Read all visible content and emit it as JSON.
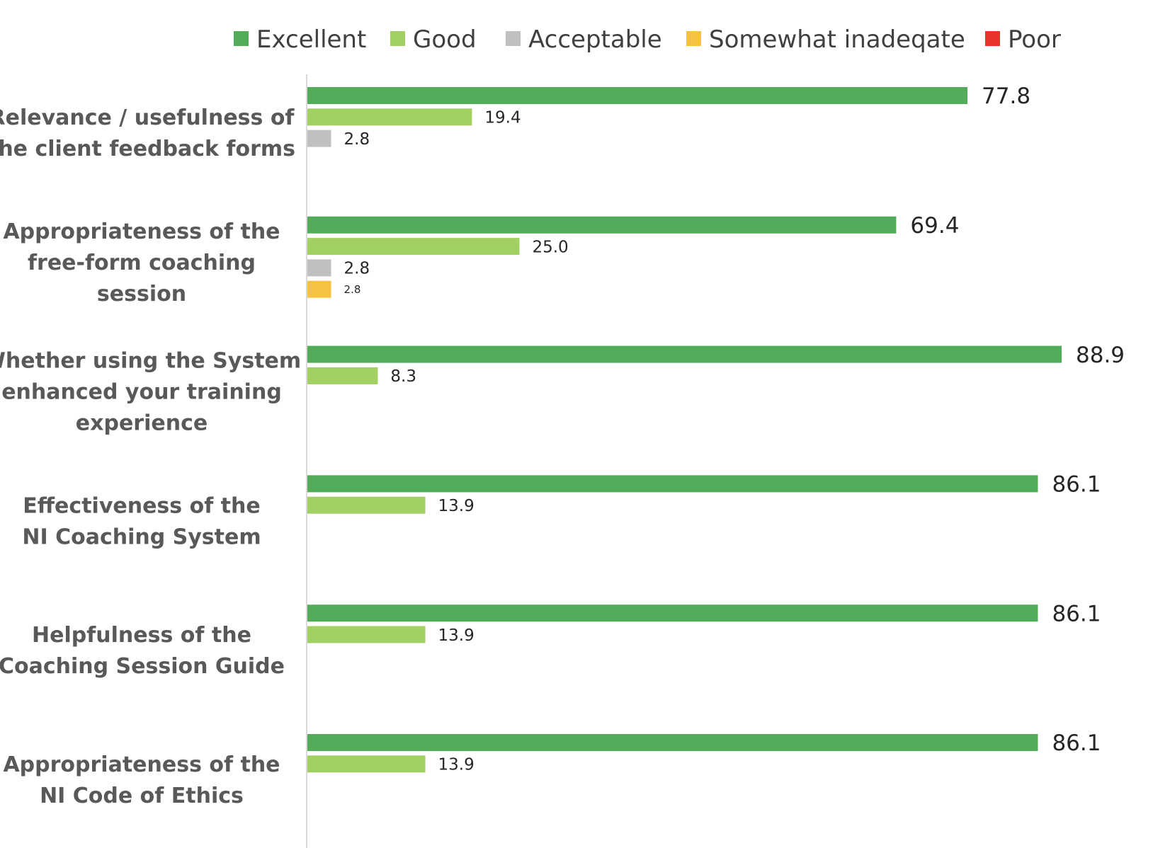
{
  "chart_data": {
    "type": "bar",
    "orientation": "horizontal",
    "legend_position": "top",
    "grid": false,
    "xlim": [
      0,
      100
    ],
    "series": [
      {
        "name": "Excellent",
        "color": "#52ac5a",
        "values": [
          77.8,
          69.4,
          88.9,
          86.1,
          86.1,
          86.1
        ]
      },
      {
        "name": "Good",
        "color": "#a2d062",
        "values": [
          19.4,
          25.0,
          8.3,
          13.9,
          13.9,
          13.9
        ]
      },
      {
        "name": "Acceptable",
        "color": "#c0c0c0",
        "values": [
          2.8,
          2.8,
          null,
          null,
          null,
          null
        ]
      },
      {
        "name": "Somewhat inadeqate",
        "color": "#f5c242",
        "values": [
          null,
          2.8,
          null,
          null,
          null,
          null
        ]
      },
      {
        "name": "Poor",
        "color": "#e8322a",
        "values": [
          null,
          null,
          null,
          null,
          null,
          null
        ]
      }
    ],
    "categories": [
      {
        "lines": [
          "Relevance / usefulness of",
          "the client feedback forms"
        ]
      },
      {
        "lines": [
          "Appropriateness of the",
          "free-form coaching",
          "session"
        ]
      },
      {
        "lines": [
          "Whether using the System",
          "enhanced your training",
          "experience"
        ]
      },
      {
        "lines": [
          "Effectiveness of the",
          "NI Coaching System"
        ]
      },
      {
        "lines": [
          "Helpfulness of the",
          "Coaching Session Guide"
        ]
      },
      {
        "lines": [
          "Appropriateness of the",
          "NI Code of Ethics"
        ]
      }
    ],
    "value_labels": [
      [
        "77.8",
        "19.4",
        "2.8",
        null,
        null
      ],
      [
        "69.4",
        "25.0",
        "2.8",
        "2.8",
        null
      ],
      [
        "88.9",
        "8.3",
        null,
        null,
        null
      ],
      [
        "86.1",
        "13.9",
        null,
        null,
        null
      ],
      [
        "86.1",
        "13.9",
        null,
        null,
        null
      ],
      [
        "86.1",
        "13.9",
        null,
        null,
        null
      ]
    ]
  }
}
